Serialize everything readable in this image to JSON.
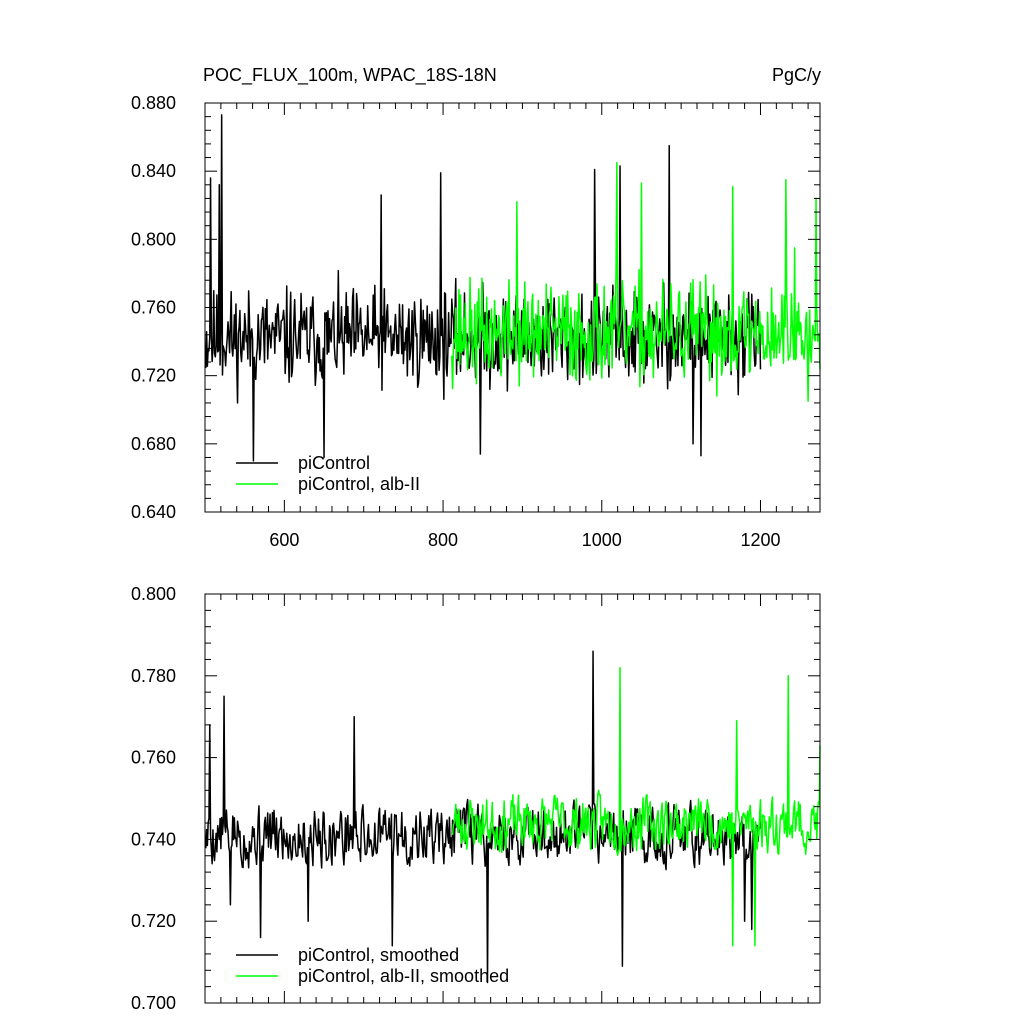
{
  "chart_data": [
    {
      "type": "line",
      "title_left": "POC_FLUX_100m, WPAC_18S-18N",
      "title_right": "PgC/y",
      "xlabel": "",
      "ylabel": "",
      "xlim": [
        500,
        1275
      ],
      "ylim": [
        0.64,
        0.88
      ],
      "xticks": [
        600,
        800,
        1000,
        1200
      ],
      "xtick_labels": [
        "600",
        "800",
        "1000",
        "1200"
      ],
      "yticks": [
        0.64,
        0.68,
        0.72,
        0.76,
        0.8,
        0.84,
        0.88
      ],
      "ytick_labels": [
        "0.640",
        "0.680",
        "0.720",
        "0.760",
        "0.800",
        "0.840",
        "0.880"
      ],
      "legend_position": "bottom-left",
      "grid": false,
      "series": [
        {
          "name": "piControl",
          "color": "#000000",
          "x_start": 501,
          "x_end": 1200,
          "mean": 0.742,
          "spread": 0.026,
          "seed": 11,
          "highlights": [
            [
              521,
              0.873
            ],
            [
              507,
              0.836
            ],
            [
              518,
              0.832
            ],
            [
              561,
              0.67
            ],
            [
              650,
              0.672
            ],
            [
              722,
              0.826
            ],
            [
              797,
              0.839
            ],
            [
              991,
              0.841
            ],
            [
              1023,
              0.843
            ],
            [
              1085,
              0.855
            ],
            [
              1115,
              0.68
            ],
            [
              1125,
              0.673
            ],
            [
              847,
              0.674
            ]
          ]
        },
        {
          "name": "piControl, alb-II",
          "color": "#00ff00",
          "x_start": 811,
          "x_end": 1275,
          "mean": 0.745,
          "spread": 0.027,
          "seed": 37,
          "highlights": [
            [
              893,
              0.822
            ],
            [
              1019,
              0.845
            ],
            [
              1232,
              0.835
            ],
            [
              1243,
              0.795
            ],
            [
              1270,
              0.824
            ],
            [
              1050,
              0.833
            ],
            [
              1165,
              0.831
            ],
            [
              1260,
              0.705
            ]
          ]
        }
      ]
    },
    {
      "type": "line",
      "xlabel": "",
      "ylabel": "",
      "xlim": [
        500,
        1275
      ],
      "ylim": [
        0.7,
        0.8
      ],
      "xticks": [
        600,
        800,
        1000,
        1200
      ],
      "yticks": [
        0.7,
        0.72,
        0.74,
        0.76,
        0.78,
        0.8
      ],
      "ytick_labels": [
        "0.700",
        "0.720",
        "0.740",
        "0.760",
        "0.780",
        "0.800"
      ],
      "legend_position": "bottom-left",
      "grid": false,
      "series": [
        {
          "name": "piControl, smoothed",
          "color": "#000000",
          "x_start": 501,
          "x_end": 1200,
          "mean": 0.741,
          "spread": 0.011,
          "seed": 5,
          "highlights": [
            [
              524,
              0.775
            ],
            [
              506,
              0.768
            ],
            [
              532,
              0.724
            ],
            [
              570,
              0.716
            ],
            [
              688,
              0.77
            ],
            [
              630,
              0.72
            ],
            [
              736,
              0.714
            ],
            [
              856,
              0.705
            ],
            [
              989,
              0.786
            ],
            [
              1026,
              0.709
            ],
            [
              1189,
              0.718
            ],
            [
              1180,
              0.72
            ]
          ]
        },
        {
          "name": "piControl, alb-II, smoothed",
          "color": "#00ff00",
          "x_start": 811,
          "x_end": 1275,
          "mean": 0.744,
          "spread": 0.01,
          "seed": 23,
          "highlights": [
            [
              1023,
              0.782
            ],
            [
              1235,
              0.78
            ],
            [
              1170,
              0.769
            ],
            [
              1165,
              0.714
            ],
            [
              1193,
              0.714
            ],
            [
              1275,
              0.763
            ],
            [
              1210,
              0.74
            ]
          ]
        }
      ]
    }
  ]
}
